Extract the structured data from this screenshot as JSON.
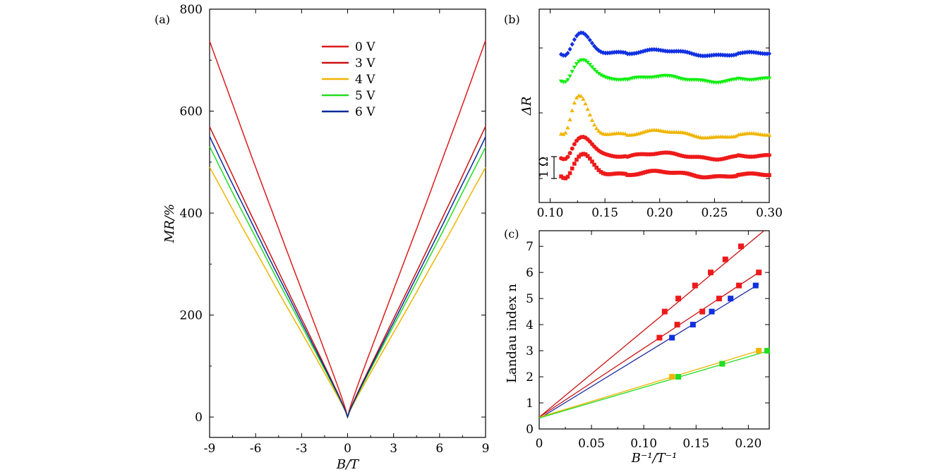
{
  "chart_data": [
    {
      "panel": "(a)",
      "type": "line",
      "xlabel": "B/T",
      "ylabel": "MR/%",
      "xlim": [
        -9,
        9
      ],
      "ylim": [
        -40,
        800
      ],
      "xticks": [
        "-9",
        "-6",
        "-3",
        "0",
        "3",
        "6",
        "9"
      ],
      "yticks": [
        "0",
        "200",
        "400",
        "600",
        "800"
      ],
      "legend_position": "top-center",
      "series": [
        {
          "name": "0 V",
          "color": "#dd1a1a",
          "end": 738,
          "scale": 1.0
        },
        {
          "name": "3 V",
          "color": "#cc1111",
          "end": 570,
          "scale": 1.05
        },
        {
          "name": "4 V",
          "color": "#f0b400",
          "end": 490,
          "scale": 1.08
        },
        {
          "name": "5 V",
          "color": "#22dd22",
          "end": 530,
          "scale": 1.06
        },
        {
          "name": "6 V",
          "color": "#0a2a9c",
          "end": 550,
          "scale": 1.06
        }
      ]
    },
    {
      "panel": "(b)",
      "type": "scatter",
      "ylabel": "ΔR",
      "xlim": [
        0.09,
        0.3
      ],
      "xticks": [
        "0.10",
        "0.15",
        "0.20",
        "0.25",
        "0.30"
      ],
      "scale_bar": "1 Ω",
      "series": [
        {
          "color": "#1030e0",
          "marker": "diamond",
          "offset": 0.0,
          "amp": 1.2
        },
        {
          "color": "#10ee10",
          "marker": "triangle-down",
          "offset": 1.0,
          "amp": 0.7
        },
        {
          "color": "#f0b400",
          "marker": "triangle",
          "offset": 2.5,
          "amp": 1.9
        },
        {
          "color": "#ee1a1a",
          "marker": "circle",
          "offset": 3.6,
          "amp": 0.6
        },
        {
          "color": "#ee1a1a",
          "marker": "square",
          "offset": 4.1,
          "amp": 0.6
        }
      ]
    },
    {
      "panel": "(c)",
      "type": "scatter",
      "xlabel": "B⁻¹/T⁻¹",
      "ylabel": "Landau index n",
      "xlim": [
        0,
        0.22
      ],
      "ylim": [
        0,
        7.6
      ],
      "xticks": [
        "0",
        "0.05",
        "0.10",
        "0.15",
        "0.20"
      ],
      "yticks": [
        "0",
        "1",
        "2",
        "3",
        "4",
        "5",
        "6",
        "7"
      ],
      "series": [
        {
          "color": "#ee1a1a",
          "points": [
            [
              0.12,
              4.5
            ],
            [
              0.133,
              5.0
            ],
            [
              0.149,
              5.5
            ],
            [
              0.164,
              6.0
            ],
            [
              0.178,
              6.5
            ],
            [
              0.193,
              7.0
            ]
          ],
          "fit": [
            [
              0,
              0.45
            ],
            [
              0.215,
              7.6
            ]
          ]
        },
        {
          "color": "#ee1a1a",
          "points": [
            [
              0.115,
              3.5
            ],
            [
              0.132,
              4.0
            ],
            [
              0.156,
              4.5
            ],
            [
              0.172,
              5.0
            ],
            [
              0.191,
              5.5
            ],
            [
              0.21,
              6.0
            ]
          ],
          "fit": [
            [
              0,
              0.45
            ],
            [
              0.21,
              6.0
            ]
          ]
        },
        {
          "color": "#1030e0",
          "points": [
            [
              0.127,
              3.5
            ],
            [
              0.147,
              4.0
            ],
            [
              0.165,
              4.5
            ],
            [
              0.183,
              5.0
            ],
            [
              0.207,
              5.5
            ]
          ],
          "fit": [
            [
              0,
              0.4
            ],
            [
              0.21,
              5.55
            ]
          ]
        },
        {
          "color": "#f0b400",
          "points": [
            [
              0.127,
              2.0
            ],
            [
              0.175,
              2.5
            ],
            [
              0.21,
              3.0
            ]
          ],
          "fit": [
            [
              0,
              0.45
            ],
            [
              0.21,
              3.0
            ]
          ]
        },
        {
          "color": "#22dd22",
          "points": [
            [
              0.133,
              2.0
            ],
            [
              0.175,
              2.5
            ],
            [
              0.218,
              3.0
            ]
          ],
          "fit": [
            [
              0,
              0.42
            ],
            [
              0.218,
              2.98
            ]
          ]
        }
      ]
    }
  ]
}
